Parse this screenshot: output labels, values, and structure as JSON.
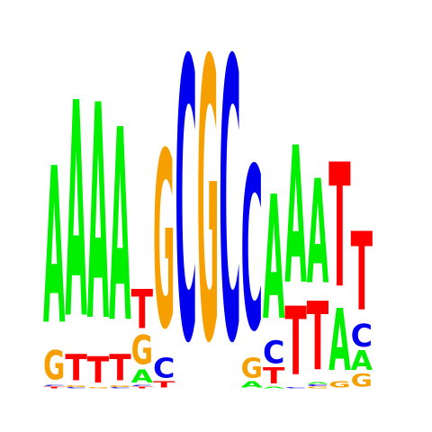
{
  "logo": {
    "colors": {
      "A": "#00ee00",
      "C": "#0000ee",
      "G": "#f5a000",
      "T": "#ff0000"
    },
    "positions": [
      [
        [
          "T",
          0.03
        ],
        [
          "C",
          0.02
        ],
        [
          "G",
          0.45
        ],
        [
          "A",
          2.4
        ]
      ],
      [
        [
          "C",
          0.02
        ],
        [
          "G",
          0.03
        ],
        [
          "T",
          0.4
        ],
        [
          "A",
          3.3
        ]
      ],
      [
        [
          "G",
          0.02
        ],
        [
          "T",
          0.4
        ],
        [
          "A",
          3.3
        ]
      ],
      [
        [
          "C",
          0.02
        ],
        [
          "G",
          0.03
        ],
        [
          "T",
          0.4
        ],
        [
          "A",
          2.95
        ]
      ],
      [
        [
          "T",
          0.03
        ],
        [
          "C",
          0.02
        ],
        [
          "A",
          0.2
        ],
        [
          "G",
          0.45
        ],
        [
          "T",
          0.6
        ]
      ],
      [
        [
          "T",
          0.1
        ],
        [
          "C",
          0.3
        ],
        [
          "G",
          2.7
        ]
      ],
      [
        [
          "C",
          4.3
        ]
      ],
      [
        [
          "G",
          4.3
        ]
      ],
      [
        [
          "C",
          4.3
        ]
      ],
      [
        [
          "A",
          0.1
        ],
        [
          "G",
          0.3
        ],
        [
          "C",
          2.5
        ]
      ],
      [
        [
          "A",
          0.03
        ],
        [
          "T",
          0.25
        ],
        [
          "C",
          0.35
        ],
        [
          "A",
          1.9
        ]
      ],
      [
        [
          "C",
          0.02
        ],
        [
          "T",
          1.05
        ],
        [
          "A",
          2.1
        ]
      ],
      [
        [
          "G",
          0.03
        ],
        [
          "C",
          0.03
        ],
        [
          "A",
          0.03
        ],
        [
          "T",
          1.05
        ],
        [
          "A",
          1.6
        ]
      ],
      [
        [
          "G",
          0.1
        ],
        [
          "A",
          0.95
        ],
        [
          "T",
          1.9
        ]
      ],
      [
        [
          "G",
          0.2
        ],
        [
          "A",
          0.3
        ],
        [
          "C",
          0.35
        ],
        [
          "T",
          1.2
        ]
      ]
    ]
  }
}
